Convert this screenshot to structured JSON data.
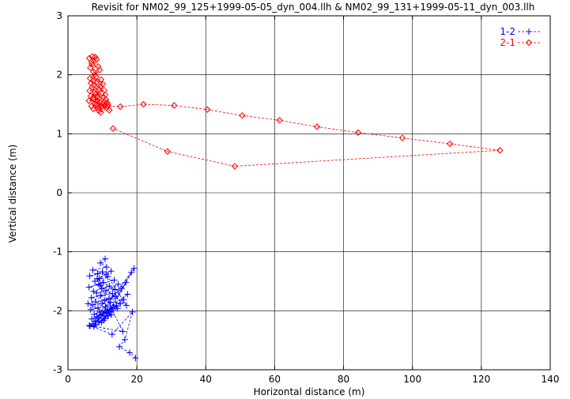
{
  "chart_data": {
    "type": "line",
    "title": "Revisit for NM02_99_125+1999-05-05_dyn_004.llh & NM02_99_131+1999-05-11_dyn_003.llh",
    "xlabel": "Horizontal distance (m)",
    "ylabel": "Vertical distance (m)",
    "xlim": [
      0,
      140
    ],
    "ylim": [
      -3,
      3
    ],
    "xticks": [
      0,
      20,
      40,
      60,
      80,
      100,
      120,
      140
    ],
    "yticks": [
      -3,
      -2,
      -1,
      0,
      1,
      2,
      3
    ],
    "xtick_labels": [
      "0",
      "20",
      "40",
      "60",
      "80",
      "100",
      "120",
      "140"
    ],
    "ytick_labels": [
      "-3",
      "-2",
      "-1",
      "0",
      "1",
      "2",
      "3"
    ],
    "grid": true,
    "legend_position": "top-right",
    "series": [
      {
        "name": "1-2",
        "color": "#0000ff",
        "marker": "plus",
        "line_style": "dashed",
        "x": [
          10.8,
          9.4,
          11.2,
          7.2,
          10.0,
          8.6,
          6.3,
          12.5,
          9.1,
          7.8,
          11.6,
          8.9,
          13.4,
          6.1,
          10.3,
          9.8,
          12.0,
          7.4,
          8.3,
          11.0,
          14.6,
          9.5,
          6.8,
          12.9,
          10.6,
          8.0,
          13.8,
          7.1,
          9.9,
          11.9,
          15.6,
          8.7,
          6.6,
          10.9,
          12.3,
          9.2,
          7.6,
          14.1,
          11.4,
          8.4,
          17.3,
          10.1,
          6.9,
          12.7,
          9.6,
          16.2,
          7.9,
          11.3,
          13.1,
          8.8,
          19.2,
          10.4,
          7.3,
          15.2,
          9.0,
          12.2,
          6.4,
          18.4,
          11.7,
          8.1,
          14.4,
          10.7,
          7.5,
          16.8,
          9.7,
          12.6,
          5.8,
          13.6,
          8.5,
          11.1,
          17.0,
          9.3,
          15.9,
          6.2,
          12.8,
          18.7,
          16.5,
          14.9,
          17.9,
          19.6
        ],
        "y": [
          -1.12,
          -1.19,
          -1.26,
          -1.31,
          -1.34,
          -1.37,
          -1.41,
          -1.33,
          -1.45,
          -1.5,
          -1.42,
          -1.55,
          -1.48,
          -1.6,
          -1.52,
          -1.63,
          -1.58,
          -1.67,
          -1.7,
          -1.66,
          -1.55,
          -1.74,
          -1.78,
          -1.71,
          -1.82,
          -1.85,
          -1.76,
          -1.9,
          -1.88,
          -1.8,
          -1.62,
          -1.95,
          -1.98,
          -1.93,
          -1.86,
          -2.02,
          -2.06,
          -1.92,
          -1.99,
          -2.1,
          -1.72,
          -2.05,
          -2.14,
          -1.97,
          -2.08,
          -1.81,
          -2.18,
          -2.03,
          -1.94,
          -2.12,
          -1.28,
          -2.16,
          -2.22,
          -1.88,
          -2.19,
          -2.01,
          -2.26,
          -1.35,
          -2.09,
          -2.24,
          -1.96,
          -2.13,
          -2.27,
          -1.52,
          -2.2,
          -2.07,
          -1.88,
          -1.64,
          -1.46,
          -1.38,
          -1.91,
          -1.57,
          -2.35,
          -2.25,
          -2.4,
          -2.02,
          -2.49,
          -2.61,
          -2.71,
          -2.8
        ]
      },
      {
        "name": "2-1",
        "color": "#ff0000",
        "marker": "diamond",
        "line_style": "dashed",
        "x": [
          6.2,
          7.1,
          6.8,
          7.9,
          6.5,
          8.3,
          7.4,
          6.9,
          8.8,
          7.7,
          6.4,
          9.2,
          7.2,
          8.1,
          6.7,
          9.6,
          7.5,
          8.5,
          10.1,
          7.0,
          8.9,
          6.3,
          9.4,
          7.8,
          10.5,
          8.0,
          6.6,
          9.8,
          7.3,
          8.6,
          10.8,
          7.6,
          9.0,
          6.1,
          8.4,
          10.3,
          7.9,
          9.3,
          11.0,
          8.2,
          6.8,
          10.0,
          8.7,
          11.3,
          7.4,
          9.7,
          10.6,
          8.9,
          11.6,
          9.5,
          11.1,
          12.0,
          11.5,
          15.2,
          21.9,
          30.8,
          40.5,
          50.6,
          61.4,
          72.3,
          84.2,
          97.1,
          110.9,
          125.4,
          48.4,
          28.9,
          13.1
        ],
        "y": [
          2.28,
          2.31,
          2.22,
          2.3,
          2.12,
          2.26,
          2.05,
          2.18,
          2.14,
          2.0,
          1.94,
          2.08,
          1.9,
          1.97,
          1.86,
          1.92,
          1.82,
          1.88,
          1.84,
          1.79,
          1.76,
          1.73,
          1.8,
          1.7,
          1.74,
          1.67,
          1.64,
          1.69,
          1.61,
          1.63,
          1.66,
          1.58,
          1.6,
          1.56,
          1.55,
          1.62,
          1.52,
          1.54,
          1.58,
          1.49,
          1.47,
          1.51,
          1.44,
          1.53,
          1.42,
          1.46,
          1.48,
          1.39,
          1.5,
          1.36,
          1.44,
          1.4,
          1.47,
          1.46,
          1.5,
          1.48,
          1.41,
          1.31,
          1.23,
          1.12,
          1.02,
          0.93,
          0.83,
          0.72,
          0.45,
          0.7,
          1.09
        ]
      }
    ]
  }
}
